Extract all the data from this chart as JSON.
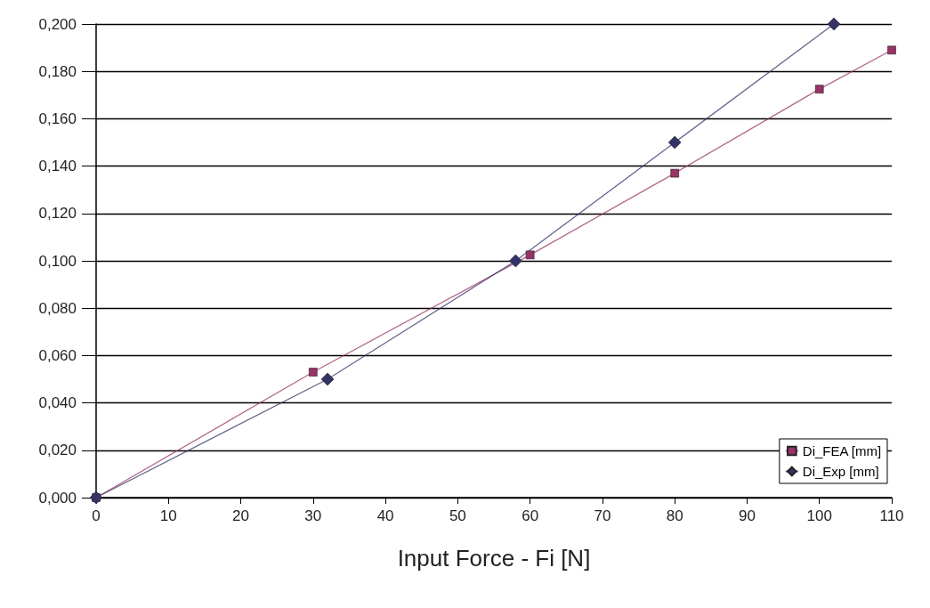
{
  "chart_data": {
    "type": "line",
    "xlabel": "Input Force - Fi [N]",
    "xlim": [
      0,
      110
    ],
    "xticks": [
      0,
      10,
      20,
      30,
      40,
      50,
      60,
      70,
      80,
      90,
      100,
      110
    ],
    "ylim": [
      0,
      0.2
    ],
    "yticks": [
      {
        "value": 0,
        "label": "0,000"
      },
      {
        "value": 0.02,
        "label": "0,020"
      },
      {
        "value": 0.04,
        "label": "0,040"
      },
      {
        "value": 0.06,
        "label": "0,060"
      },
      {
        "value": 0.08,
        "label": "0,080"
      },
      {
        "value": 0.1,
        "label": "0,100"
      },
      {
        "value": 0.12,
        "label": "0,120"
      },
      {
        "value": 0.14,
        "label": "0,140"
      },
      {
        "value": 0.16,
        "label": "0,160"
      },
      {
        "value": 0.18,
        "label": "0,180"
      },
      {
        "value": 0.2,
        "label": "0,200"
      }
    ],
    "grid": "y",
    "legend": "bottom right",
    "line_style": "solid",
    "series": [
      {
        "name": "Di_FEA [mm]",
        "color": "#993366",
        "marker": "square",
        "x": [
          0,
          30,
          60,
          80,
          100,
          110
        ],
        "values": [
          0,
          0.053,
          0.1025,
          0.137,
          0.1725,
          0.189
        ]
      },
      {
        "name": "Di_Exp [mm]",
        "color": "#333366",
        "marker": "diamond",
        "x": [
          0,
          32,
          58,
          80,
          102
        ],
        "values": [
          0,
          0.05,
          0.1,
          0.15,
          0.2
        ]
      }
    ]
  }
}
